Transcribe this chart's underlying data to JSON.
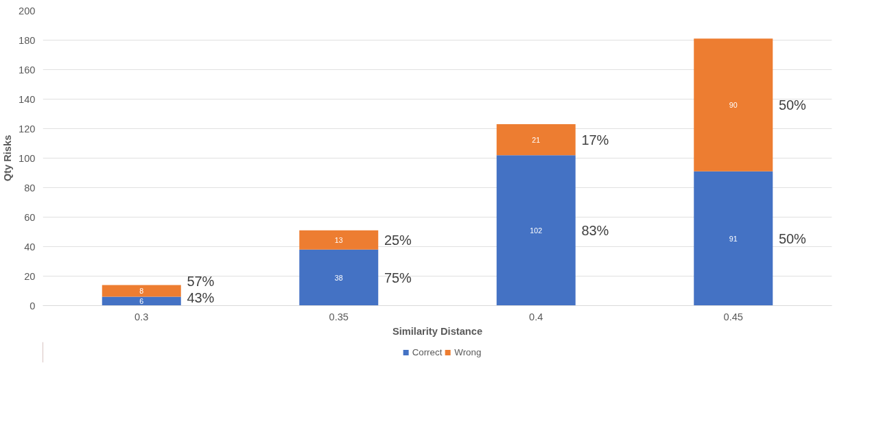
{
  "chart_data": {
    "type": "bar",
    "stacked": true,
    "categories": [
      "0.3",
      "0.35",
      "0.4",
      "0.45"
    ],
    "series": [
      {
        "name": "Correct",
        "color": "#4472c4",
        "values": [
          6,
          38,
          102,
          91
        ]
      },
      {
        "name": "Wrong",
        "color": "#ed7d31",
        "values": [
          8,
          13,
          21,
          90
        ]
      }
    ],
    "xlabel": "Similarity Distance",
    "ylabel": "Qty Risks",
    "ylim": [
      0,
      200
    ],
    "yticks": [
      0,
      20,
      40,
      60,
      80,
      100,
      120,
      140,
      160,
      180,
      200
    ],
    "grid": "y",
    "legend": "bottom",
    "data_labels": true,
    "annotations": [
      "43%",
      "57%",
      "75%",
      "25%",
      "83%",
      "17%",
      "50%",
      "50%"
    ]
  }
}
